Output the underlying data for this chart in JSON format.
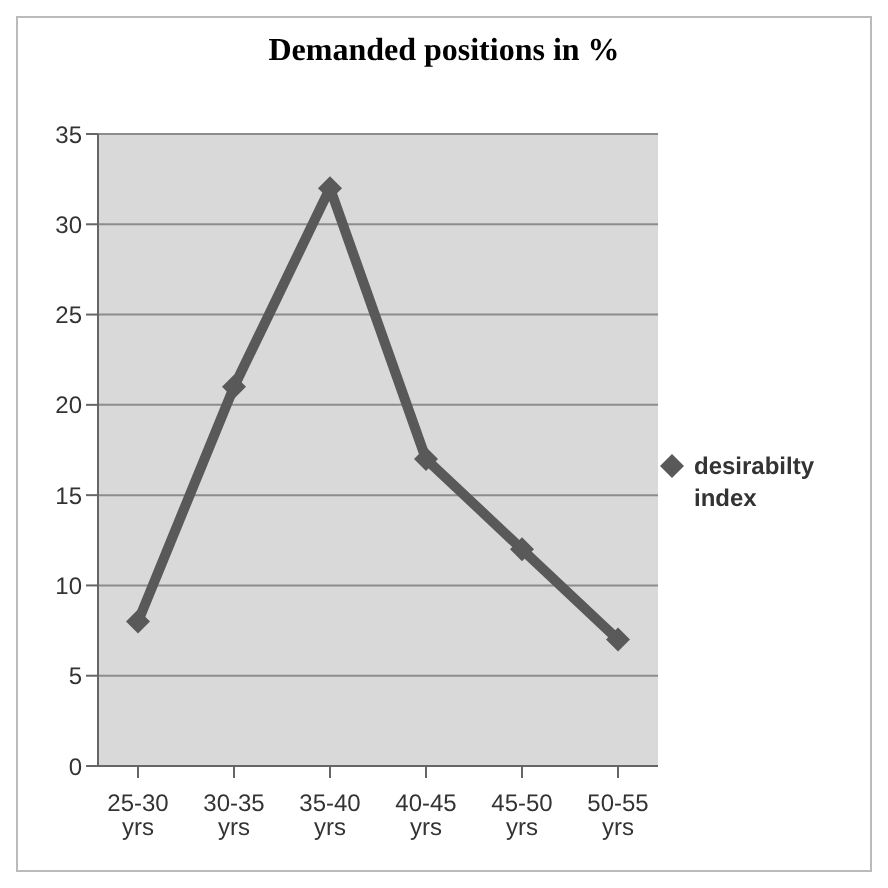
{
  "chart_data": {
    "type": "line",
    "title": "Demanded positions in %",
    "categories": [
      "25-30 yrs",
      "30-35 yrs",
      "35-40 yrs",
      "40-45 yrs",
      "45-50 yrs",
      "50-55 yrs"
    ],
    "series": [
      {
        "name": "desirabilty index",
        "color": "#595959",
        "values": [
          8,
          21,
          32,
          17,
          12,
          7
        ]
      }
    ],
    "ylim": [
      0,
      35
    ],
    "yticks": [
      0,
      5,
      10,
      15,
      20,
      25,
      30,
      35
    ],
    "grid": "y",
    "legend": "right",
    "marker": "diamond",
    "line_style": "solid"
  }
}
